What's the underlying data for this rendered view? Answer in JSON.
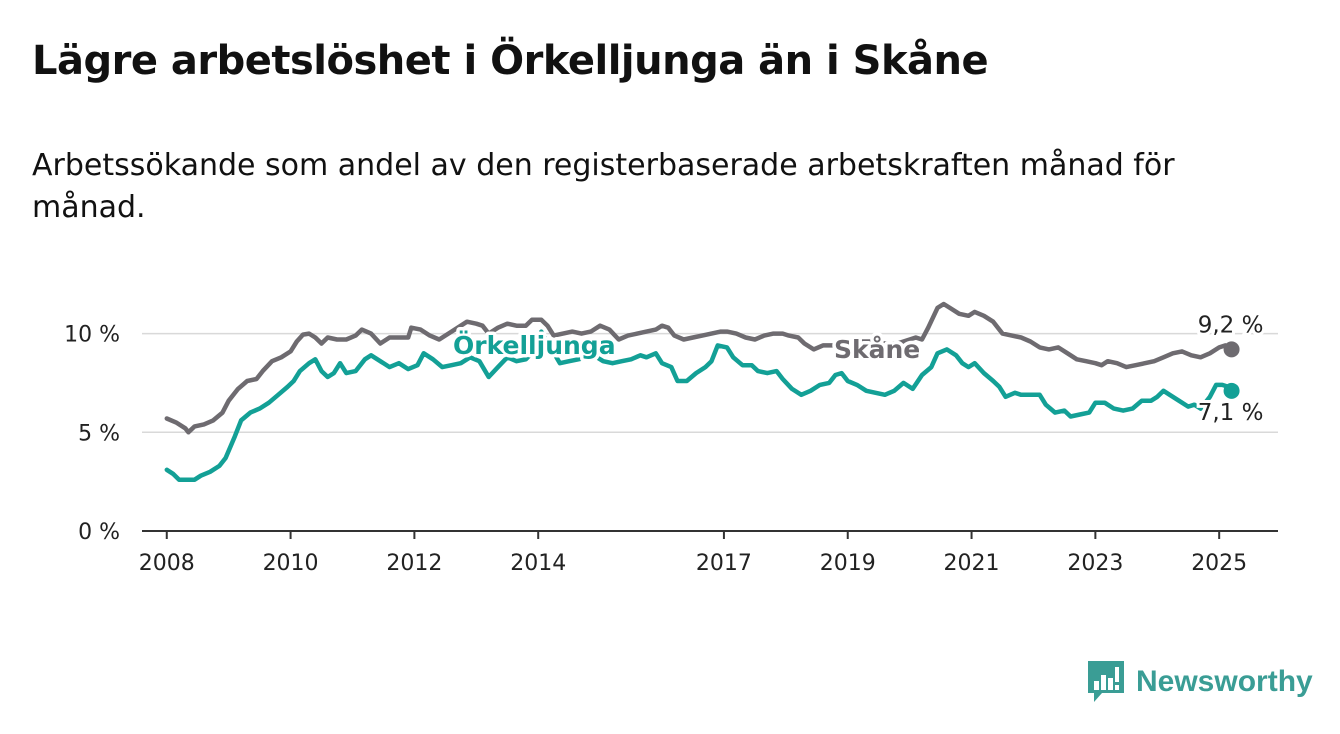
{
  "header": {
    "title": "Lägre arbetslöshet i Örkelljunga än i Skåne",
    "subtitle": "Arbetssökande som andel av den registerbaserade arbetskraften månad för månad."
  },
  "brand": {
    "name": "Newsworthy",
    "icon": "newsworthy-logo-icon",
    "color": "#3a9d95"
  },
  "chart_data": {
    "type": "line",
    "title": "Lägre arbetslöshet i Örkelljunga än i Skåne",
    "subtitle": "Arbetssökande som andel av den registerbaserade arbetskraften månad för månad.",
    "xlabel": "",
    "ylabel": "",
    "xlim": [
      2007.6,
      2025.95
    ],
    "ylim": [
      0,
      11.6
    ],
    "x_ticks": [
      2008,
      2010,
      2012,
      2014,
      2017,
      2019,
      2021,
      2023,
      2025
    ],
    "x_tick_labels": [
      "2008",
      "2010",
      "2012",
      "2014",
      "2017",
      "2019",
      "2021",
      "2023",
      "2025"
    ],
    "y_ticks": [
      0,
      5,
      10
    ],
    "y_tick_labels": [
      "0 %",
      "5 %",
      "10 %"
    ],
    "grid": "horizontal",
    "legend": "direct labels on lines",
    "series": [
      {
        "name": "Skåne",
        "color": "#6e6b70",
        "end_label": "9,2 %",
        "points": [
          [
            2008.0,
            5.7
          ],
          [
            2008.15,
            5.5
          ],
          [
            2008.3,
            5.2
          ],
          [
            2008.35,
            5.0
          ],
          [
            2008.45,
            5.3
          ],
          [
            2008.6,
            5.4
          ],
          [
            2008.75,
            5.6
          ],
          [
            2008.9,
            6.0
          ],
          [
            2009.0,
            6.6
          ],
          [
            2009.15,
            7.2
          ],
          [
            2009.3,
            7.6
          ],
          [
            2009.45,
            7.7
          ],
          [
            2009.55,
            8.1
          ],
          [
            2009.7,
            8.6
          ],
          [
            2009.85,
            8.8
          ],
          [
            2010.0,
            9.1
          ],
          [
            2010.1,
            9.6
          ],
          [
            2010.2,
            9.95
          ],
          [
            2010.3,
            10.0
          ],
          [
            2010.4,
            9.8
          ],
          [
            2010.5,
            9.5
          ],
          [
            2010.6,
            9.8
          ],
          [
            2010.75,
            9.7
          ],
          [
            2010.9,
            9.7
          ],
          [
            2011.05,
            9.9
          ],
          [
            2011.15,
            10.2
          ],
          [
            2011.3,
            10.0
          ],
          [
            2011.45,
            9.5
          ],
          [
            2011.6,
            9.8
          ],
          [
            2011.75,
            9.8
          ],
          [
            2011.9,
            9.8
          ],
          [
            2011.95,
            10.3
          ],
          [
            2012.1,
            10.2
          ],
          [
            2012.25,
            9.9
          ],
          [
            2012.4,
            9.7
          ],
          [
            2012.55,
            10.0
          ],
          [
            2012.7,
            10.3
          ],
          [
            2012.85,
            10.6
          ],
          [
            2013.0,
            10.5
          ],
          [
            2013.1,
            10.4
          ],
          [
            2013.2,
            10.0
          ],
          [
            2013.35,
            10.3
          ],
          [
            2013.5,
            10.5
          ],
          [
            2013.65,
            10.4
          ],
          [
            2013.8,
            10.4
          ],
          [
            2013.9,
            10.7
          ],
          [
            2014.05,
            10.7
          ],
          [
            2014.15,
            10.4
          ],
          [
            2014.25,
            9.9
          ],
          [
            2014.4,
            10.0
          ],
          [
            2014.55,
            10.1
          ],
          [
            2014.7,
            10.0
          ],
          [
            2014.85,
            10.1
          ],
          [
            2015.0,
            10.4
          ],
          [
            2015.15,
            10.2
          ],
          [
            2015.3,
            9.7
          ],
          [
            2015.45,
            9.9
          ],
          [
            2015.6,
            10.0
          ],
          [
            2015.75,
            10.1
          ],
          [
            2015.9,
            10.2
          ],
          [
            2016.0,
            10.4
          ],
          [
            2016.1,
            10.3
          ],
          [
            2016.2,
            9.9
          ],
          [
            2016.35,
            9.7
          ],
          [
            2016.5,
            9.8
          ],
          [
            2016.65,
            9.9
          ],
          [
            2016.8,
            10.0
          ],
          [
            2016.95,
            10.1
          ],
          [
            2017.05,
            10.1
          ],
          [
            2017.2,
            10.0
          ],
          [
            2017.35,
            9.8
          ],
          [
            2017.5,
            9.7
          ],
          [
            2017.65,
            9.9
          ],
          [
            2017.8,
            10.0
          ],
          [
            2017.95,
            10.0
          ],
          [
            2018.05,
            9.9
          ],
          [
            2018.2,
            9.8
          ],
          [
            2018.3,
            9.5
          ],
          [
            2018.45,
            9.2
          ],
          [
            2018.6,
            9.4
          ],
          [
            2018.75,
            9.4
          ],
          [
            2018.9,
            9.4
          ],
          [
            2019.0,
            9.5
          ],
          [
            2019.2,
            9.6
          ],
          [
            2019.4,
            9.6
          ],
          [
            2019.6,
            9.5
          ],
          [
            2019.8,
            9.5
          ],
          [
            2020.0,
            9.7
          ],
          [
            2020.1,
            9.8
          ],
          [
            2020.2,
            9.7
          ],
          [
            2020.3,
            10.3
          ],
          [
            2020.45,
            11.3
          ],
          [
            2020.55,
            11.5
          ],
          [
            2020.65,
            11.3
          ],
          [
            2020.8,
            11.0
          ],
          [
            2020.95,
            10.9
          ],
          [
            2021.05,
            11.1
          ],
          [
            2021.2,
            10.9
          ],
          [
            2021.35,
            10.6
          ],
          [
            2021.5,
            10.0
          ],
          [
            2021.65,
            9.9
          ],
          [
            2021.8,
            9.8
          ],
          [
            2021.95,
            9.6
          ],
          [
            2022.1,
            9.3
          ],
          [
            2022.25,
            9.2
          ],
          [
            2022.4,
            9.3
          ],
          [
            2022.55,
            9.0
          ],
          [
            2022.7,
            8.7
          ],
          [
            2022.85,
            8.6
          ],
          [
            2023.0,
            8.5
          ],
          [
            2023.1,
            8.4
          ],
          [
            2023.2,
            8.6
          ],
          [
            2023.35,
            8.5
          ],
          [
            2023.5,
            8.3
          ],
          [
            2023.65,
            8.4
          ],
          [
            2023.8,
            8.5
          ],
          [
            2023.95,
            8.6
          ],
          [
            2024.1,
            8.8
          ],
          [
            2024.25,
            9.0
          ],
          [
            2024.4,
            9.1
          ],
          [
            2024.55,
            8.9
          ],
          [
            2024.7,
            8.8
          ],
          [
            2024.85,
            9.0
          ],
          [
            2025.0,
            9.3
          ],
          [
            2025.1,
            9.4
          ],
          [
            2025.2,
            9.2
          ]
        ]
      },
      {
        "name": "Örkelljunga",
        "color": "#13a096",
        "end_label": "7,1 %",
        "points": [
          [
            2008.0,
            3.1
          ],
          [
            2008.1,
            2.9
          ],
          [
            2008.2,
            2.6
          ],
          [
            2008.35,
            2.6
          ],
          [
            2008.45,
            2.6
          ],
          [
            2008.55,
            2.8
          ],
          [
            2008.7,
            3.0
          ],
          [
            2008.85,
            3.3
          ],
          [
            2008.95,
            3.7
          ],
          [
            2009.1,
            4.8
          ],
          [
            2009.2,
            5.6
          ],
          [
            2009.35,
            6.0
          ],
          [
            2009.5,
            6.2
          ],
          [
            2009.65,
            6.5
          ],
          [
            2009.8,
            6.9
          ],
          [
            2009.95,
            7.3
          ],
          [
            2010.05,
            7.6
          ],
          [
            2010.15,
            8.1
          ],
          [
            2010.3,
            8.5
          ],
          [
            2010.4,
            8.7
          ],
          [
            2010.5,
            8.1
          ],
          [
            2010.6,
            7.8
          ],
          [
            2010.7,
            8.0
          ],
          [
            2010.8,
            8.5
          ],
          [
            2010.9,
            8.0
          ],
          [
            2011.05,
            8.1
          ],
          [
            2011.2,
            8.7
          ],
          [
            2011.3,
            8.9
          ],
          [
            2011.45,
            8.6
          ],
          [
            2011.6,
            8.3
          ],
          [
            2011.75,
            8.5
          ],
          [
            2011.9,
            8.2
          ],
          [
            2012.05,
            8.4
          ],
          [
            2012.15,
            9.0
          ],
          [
            2012.3,
            8.7
          ],
          [
            2012.45,
            8.3
          ],
          [
            2012.6,
            8.4
          ],
          [
            2012.75,
            8.5
          ],
          [
            2012.9,
            8.8
          ],
          [
            2013.05,
            8.6
          ],
          [
            2013.2,
            7.8
          ],
          [
            2013.35,
            8.3
          ],
          [
            2013.5,
            8.8
          ],
          [
            2013.65,
            8.6
          ],
          [
            2013.8,
            8.7
          ],
          [
            2013.95,
            9.2
          ],
          [
            2014.05,
            10.1
          ],
          [
            2014.2,
            9.3
          ],
          [
            2014.35,
            8.5
          ],
          [
            2014.5,
            8.6
          ],
          [
            2014.65,
            8.7
          ],
          [
            2014.8,
            8.8
          ],
          [
            2014.95,
            8.8
          ],
          [
            2015.05,
            8.6
          ],
          [
            2015.2,
            8.5
          ],
          [
            2015.35,
            8.6
          ],
          [
            2015.5,
            8.7
          ],
          [
            2015.65,
            8.9
          ],
          [
            2015.75,
            8.8
          ],
          [
            2015.9,
            9.0
          ],
          [
            2016.0,
            8.5
          ],
          [
            2016.15,
            8.3
          ],
          [
            2016.25,
            7.6
          ],
          [
            2016.4,
            7.6
          ],
          [
            2016.55,
            8.0
          ],
          [
            2016.7,
            8.3
          ],
          [
            2016.8,
            8.6
          ],
          [
            2016.9,
            9.4
          ],
          [
            2017.05,
            9.3
          ],
          [
            2017.15,
            8.8
          ],
          [
            2017.3,
            8.4
          ],
          [
            2017.45,
            8.4
          ],
          [
            2017.55,
            8.1
          ],
          [
            2017.7,
            8.0
          ],
          [
            2017.85,
            8.1
          ],
          [
            2017.95,
            7.7
          ],
          [
            2018.1,
            7.2
          ],
          [
            2018.25,
            6.9
          ],
          [
            2018.4,
            7.1
          ],
          [
            2018.55,
            7.4
          ],
          [
            2018.7,
            7.5
          ],
          [
            2018.8,
            7.9
          ],
          [
            2018.9,
            8.0
          ],
          [
            2019.0,
            7.6
          ],
          [
            2019.15,
            7.4
          ],
          [
            2019.3,
            7.1
          ],
          [
            2019.45,
            7.0
          ],
          [
            2019.6,
            6.9
          ],
          [
            2019.75,
            7.1
          ],
          [
            2019.9,
            7.5
          ],
          [
            2020.05,
            7.2
          ],
          [
            2020.2,
            7.9
          ],
          [
            2020.35,
            8.3
          ],
          [
            2020.45,
            9.0
          ],
          [
            2020.6,
            9.2
          ],
          [
            2020.75,
            8.9
          ],
          [
            2020.85,
            8.5
          ],
          [
            2020.95,
            8.3
          ],
          [
            2021.05,
            8.5
          ],
          [
            2021.2,
            8.0
          ],
          [
            2021.35,
            7.6
          ],
          [
            2021.45,
            7.3
          ],
          [
            2021.55,
            6.8
          ],
          [
            2021.7,
            7.0
          ],
          [
            2021.8,
            6.9
          ],
          [
            2021.95,
            6.9
          ],
          [
            2022.1,
            6.9
          ],
          [
            2022.2,
            6.4
          ],
          [
            2022.35,
            6.0
          ],
          [
            2022.5,
            6.1
          ],
          [
            2022.6,
            5.8
          ],
          [
            2022.75,
            5.9
          ],
          [
            2022.9,
            6.0
          ],
          [
            2023.0,
            6.5
          ],
          [
            2023.15,
            6.5
          ],
          [
            2023.3,
            6.2
          ],
          [
            2023.45,
            6.1
          ],
          [
            2023.6,
            6.2
          ],
          [
            2023.75,
            6.6
          ],
          [
            2023.9,
            6.6
          ],
          [
            2024.0,
            6.8
          ],
          [
            2024.1,
            7.1
          ],
          [
            2024.2,
            6.9
          ],
          [
            2024.35,
            6.6
          ],
          [
            2024.5,
            6.3
          ],
          [
            2024.6,
            6.4
          ],
          [
            2024.7,
            6.2
          ],
          [
            2024.85,
            6.8
          ],
          [
            2024.95,
            7.4
          ],
          [
            2025.05,
            7.4
          ],
          [
            2025.15,
            7.3
          ],
          [
            2025.2,
            7.1
          ]
        ]
      }
    ]
  }
}
